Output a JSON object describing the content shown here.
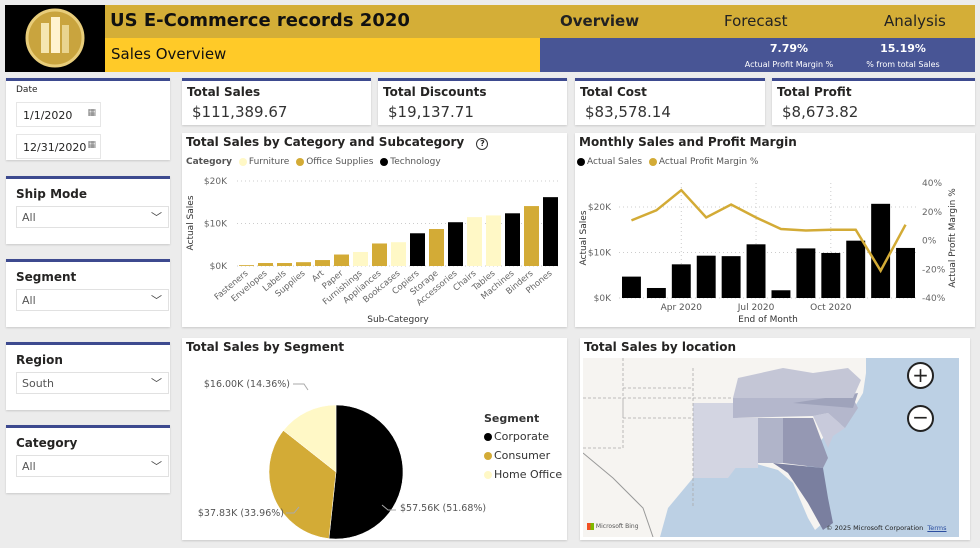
{
  "header": {
    "title": "US E-Commerce records 2020",
    "subtitle": "Sales Overview",
    "nav": [
      "Overview",
      "Forecast",
      "Analysis"
    ],
    "active_nav": "Overview",
    "metrics": [
      {
        "value": "7.79%",
        "label": "Actual Profit Margin %"
      },
      {
        "value": "15.19%",
        "label": "% from total Sales"
      }
    ]
  },
  "colors": {
    "gold": "#d4ae37",
    "yellow": "#ffca28",
    "blue": "#485595",
    "furniture": "#fff8c6",
    "office": "#d3ab36",
    "technology": "#000000"
  },
  "slicers": {
    "date": {
      "label": "Date",
      "start": "1/1/2020",
      "end": "12/31/2020"
    },
    "ship_mode": {
      "label": "Ship Mode",
      "value": "All"
    },
    "segment": {
      "label": "Segment",
      "value": "All"
    },
    "region": {
      "label": "Region",
      "value": "South"
    },
    "category": {
      "label": "Category",
      "value": "All"
    }
  },
  "kpis": [
    {
      "label": "Total Sales",
      "value": "$111,389.67"
    },
    {
      "label": "Total Discounts",
      "value": "$19,137.71"
    },
    {
      "label": "Total Cost",
      "value": "$83,578.14"
    },
    {
      "label": "Total Profit",
      "value": "$8,673.82"
    }
  ],
  "chart_data": [
    {
      "type": "bar",
      "title": "Total Sales by Category and Subcategory",
      "xlabel": "Sub-Category",
      "ylabel": "Actual Sales",
      "legend_title": "Category",
      "legend": [
        "Furniture",
        "Office Supplies",
        "Technology"
      ],
      "legend_position": "top-left",
      "ylim": [
        0,
        20000
      ],
      "yticks": [
        "$0K",
        "$10K",
        "$20K"
      ],
      "grid": true,
      "categories": [
        "Fasteners",
        "Envelopes",
        "Labels",
        "Supplies",
        "Art",
        "Paper",
        "Furnishings",
        "Appliances",
        "Bookcases",
        "Copiers",
        "Storage",
        "Accessories",
        "Chairs",
        "Tables",
        "Machines",
        "Binders",
        "Phones"
      ],
      "values": [
        200,
        700,
        700,
        900,
        1400,
        2700,
        3300,
        5300,
        5600,
        7700,
        8700,
        10300,
        11500,
        11900,
        12400,
        14100,
        16200
      ],
      "category_of": [
        "Office Supplies",
        "Office Supplies",
        "Office Supplies",
        "Office Supplies",
        "Office Supplies",
        "Office Supplies",
        "Furniture",
        "Office Supplies",
        "Furniture",
        "Technology",
        "Office Supplies",
        "Technology",
        "Furniture",
        "Furniture",
        "Technology",
        "Office Supplies",
        "Technology"
      ]
    },
    {
      "type": "bar+line",
      "title": "Monthly Sales and Profit Margin",
      "xlabel": "End of Month",
      "ylabel": "Actual Sales",
      "y2label": "Actual Profit Margin %",
      "legend": [
        "Actual Sales",
        "Actual Profit Margin %"
      ],
      "legend_position": "top-left",
      "ylim": [
        0,
        25000
      ],
      "yticks": [
        "$0K",
        "$10K",
        "$20K"
      ],
      "y2lim": [
        -40,
        40
      ],
      "y2ticks": [
        "-40%",
        "-20%",
        "0%",
        "20%",
        "40%"
      ],
      "xticks": [
        "Apr 2020",
        "Jul 2020",
        "Oct 2020"
      ],
      "grid": true,
      "x": [
        "2020-01",
        "2020-02",
        "2020-03",
        "2020-04",
        "2020-05",
        "2020-06",
        "2020-07",
        "2020-08",
        "2020-09",
        "2020-10",
        "2020-11",
        "2020-12"
      ],
      "series": [
        {
          "name": "Actual Sales",
          "values": [
            4700,
            2200,
            7400,
            9300,
            9200,
            11800,
            1700,
            10900,
            9900,
            12600,
            20700,
            11000
          ]
        },
        {
          "name": "Actual Profit Margin %",
          "values": [
            14,
            21,
            35,
            16,
            25,
            16,
            8,
            7,
            7.5,
            7.5,
            -21,
            11
          ]
        }
      ]
    },
    {
      "type": "pie",
      "title": "Total Sales by Segment",
      "legend_title": "Segment",
      "legend_position": "right",
      "slices": [
        {
          "name": "Corporate",
          "value": 57560,
          "label": "$57.56K (51.68%)",
          "pct": 51.68
        },
        {
          "name": "Consumer",
          "value": 37830,
          "label": "$37.83K (33.96%)",
          "pct": 33.96
        },
        {
          "name": "Home Office",
          "value": 16000,
          "label": "$16.00K (14.36%)",
          "pct": 14.36
        }
      ]
    }
  ],
  "map": {
    "title": "Total Sales by location",
    "attribution": "Microsoft Bing",
    "copyright": "© 2025 Microsoft Corporation",
    "terms": "Terms",
    "zoom_in_icon": "plus-icon",
    "zoom_out_icon": "minus-icon"
  }
}
